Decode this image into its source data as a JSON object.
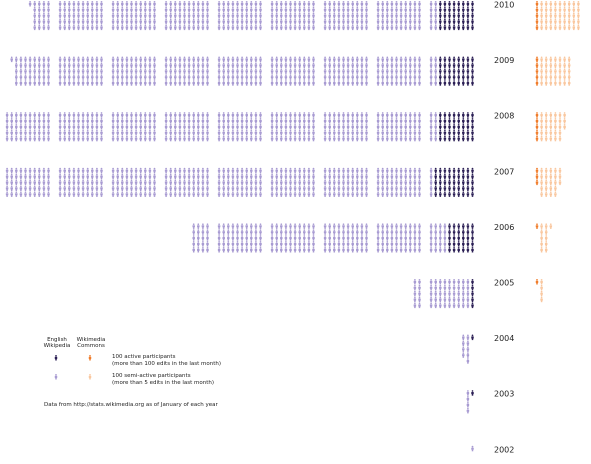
{
  "colors": {
    "enwiki_active": "#2b1f55",
    "enwiki_semi": "#a89bd2",
    "commons_active": "#f07c2a",
    "commons_semi": "#f9c79f",
    "text": "#222222"
  },
  "legend": {
    "enwiki_header": "English Wikipedia",
    "commons_header": "Wikimedia Commons",
    "active_label": "100 active participants",
    "active_sub": "(more than 100 edits in the last month)",
    "semi_label": "100 semi-active participants",
    "semi_sub": "(more than 5 edits in the last month)"
  },
  "source": "Data from http://stats.wikimedia.org as of January of each year",
  "chart_data": {
    "type": "pictogram",
    "unit": "icon = 100 participants",
    "categories": [
      "2010",
      "2009",
      "2008",
      "2007",
      "2006",
      "2005",
      "2004",
      "2003",
      "2002"
    ],
    "series": [
      {
        "name": "English Wikipedia active",
        "values": [
          40,
          40,
          40,
          45,
          30,
          5,
          1,
          1,
          0
        ]
      },
      {
        "name": "English Wikipedia semi-active",
        "values": [
          381,
          401,
          437,
          520,
          240,
          55,
          9,
          4,
          1
        ]
      },
      {
        "name": "Commons active",
        "values": [
          5,
          5,
          5,
          3,
          1,
          1,
          0,
          0,
          0
        ]
      },
      {
        "name": "Commons semi-active",
        "values": [
          45,
          35,
          28,
          23,
          11,
          4,
          0,
          0,
          0
        ]
      }
    ]
  }
}
